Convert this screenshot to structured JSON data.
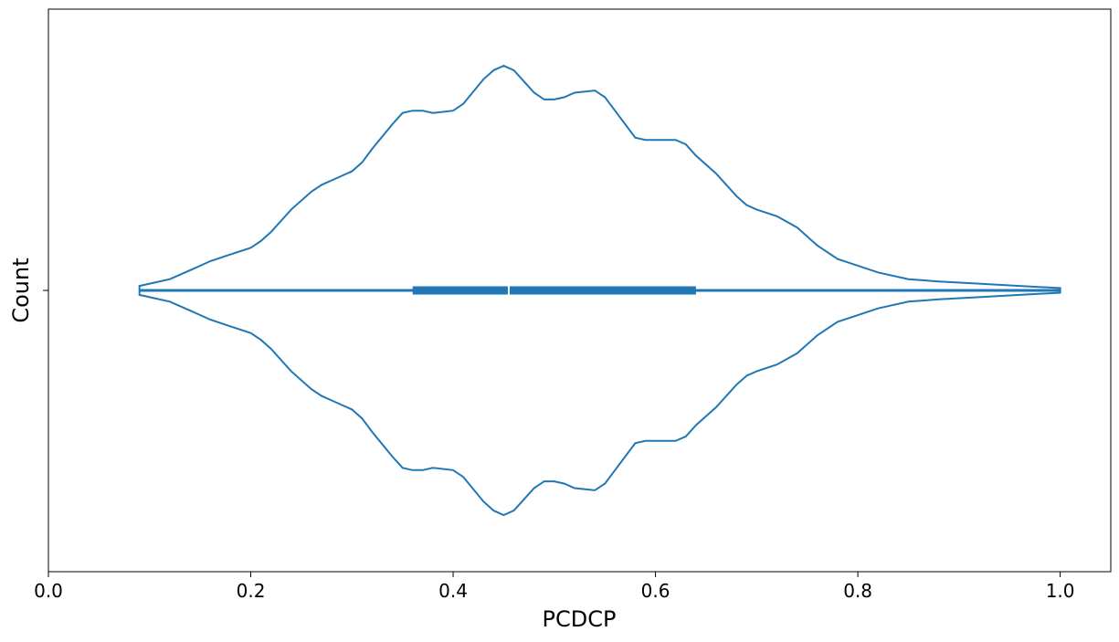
{
  "chart_data": {
    "type": "violin",
    "title": "",
    "xlabel": "PCDCP",
    "ylabel": "Count",
    "xlim": [
      0.0,
      1.05
    ],
    "x_ticks": [
      0.0,
      0.2,
      0.4,
      0.6,
      0.8,
      1.0
    ],
    "x_tick_labels": [
      "0.0",
      "0.2",
      "0.4",
      "0.6",
      "0.8",
      "1.0"
    ],
    "grid": false,
    "legend": "none",
    "color": "#1f77b4",
    "summary": {
      "min": 0.09,
      "q1": 0.36,
      "median": 0.455,
      "q3": 0.64,
      "max": 1.0
    },
    "density_relative": {
      "x": [
        0.09,
        0.1,
        0.12,
        0.14,
        0.16,
        0.18,
        0.2,
        0.21,
        0.22,
        0.24,
        0.26,
        0.27,
        0.28,
        0.3,
        0.31,
        0.32,
        0.34,
        0.35,
        0.36,
        0.37,
        0.38,
        0.4,
        0.41,
        0.43,
        0.44,
        0.45,
        0.46,
        0.47,
        0.48,
        0.49,
        0.5,
        0.51,
        0.52,
        0.54,
        0.55,
        0.56,
        0.58,
        0.59,
        0.6,
        0.62,
        0.63,
        0.64,
        0.66,
        0.68,
        0.69,
        0.7,
        0.72,
        0.74,
        0.76,
        0.78,
        0.8,
        0.82,
        0.85,
        0.88,
        0.92,
        0.96,
        1.0
      ],
      "values": [
        0.02,
        0.03,
        0.05,
        0.09,
        0.13,
        0.16,
        0.19,
        0.22,
        0.26,
        0.36,
        0.44,
        0.47,
        0.49,
        0.53,
        0.57,
        0.63,
        0.74,
        0.79,
        0.8,
        0.8,
        0.79,
        0.8,
        0.83,
        0.94,
        0.98,
        1.0,
        0.98,
        0.93,
        0.88,
        0.85,
        0.85,
        0.86,
        0.88,
        0.89,
        0.86,
        0.8,
        0.68,
        0.67,
        0.67,
        0.67,
        0.65,
        0.6,
        0.52,
        0.42,
        0.38,
        0.36,
        0.33,
        0.28,
        0.2,
        0.14,
        0.11,
        0.08,
        0.05,
        0.04,
        0.03,
        0.02,
        0.01
      ]
    }
  }
}
